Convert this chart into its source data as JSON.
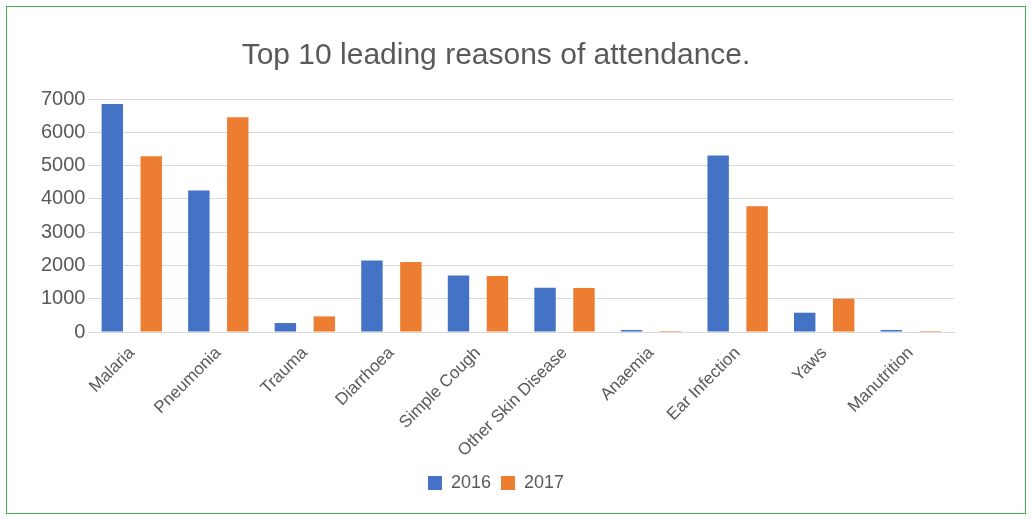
{
  "chart_data": {
    "type": "bar",
    "title": "Top 10 leading reasons of attendance.",
    "categories": [
      "Malaria",
      "Pneumonia",
      "Trauma",
      "Diarrhoea",
      "Simple Cough",
      "Other Skin Disease",
      "Anaemia",
      "Ear Infection",
      "Yaws",
      "Manutrition"
    ],
    "series": [
      {
        "name": "2016",
        "color": "#4472c4",
        "values": [
          6850,
          4250,
          270,
          2150,
          1700,
          1330,
          60,
          5300,
          580,
          60
        ]
      },
      {
        "name": "2017",
        "color": "#ed7d31",
        "values": [
          5280,
          6450,
          470,
          2100,
          1680,
          1320,
          30,
          3780,
          1000,
          30
        ]
      }
    ],
    "ylim": [
      0,
      7000
    ],
    "yticks": [
      0,
      1000,
      2000,
      3000,
      4000,
      5000,
      6000,
      7000
    ],
    "grid": "y",
    "legend": "bottom"
  }
}
